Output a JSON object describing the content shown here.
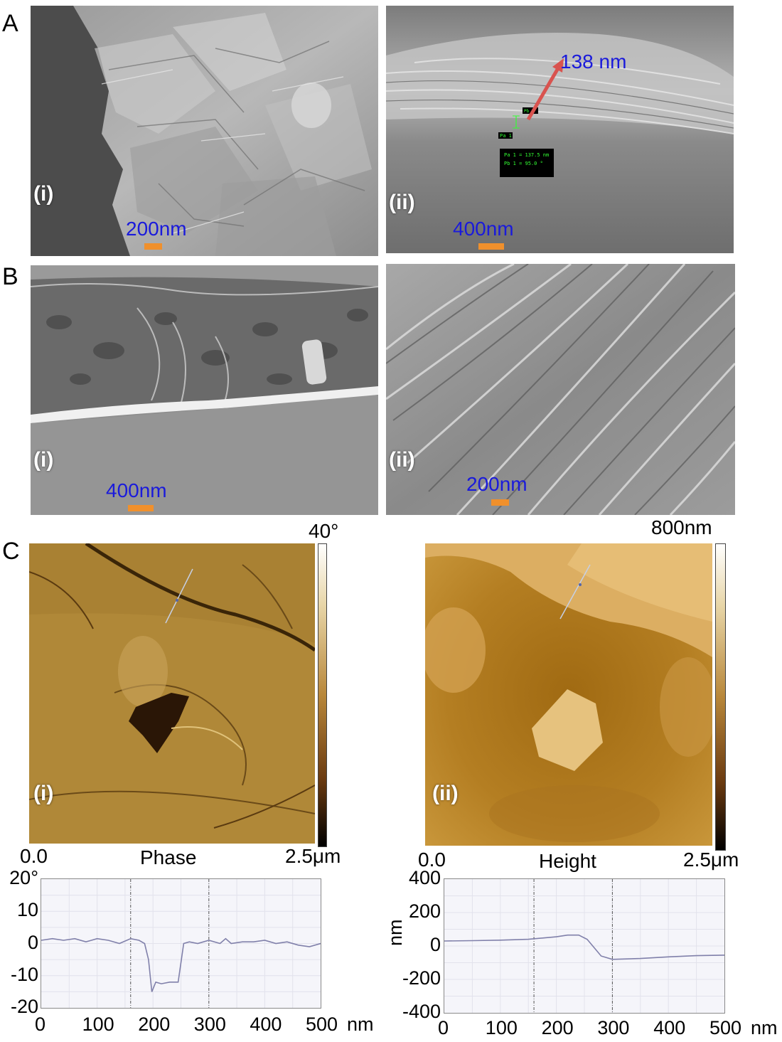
{
  "panels": {
    "A": {
      "letter": "A",
      "i": {
        "label": "(i)",
        "scale": "200nm"
      },
      "ii": {
        "label": "(ii)",
        "scale": "400nm",
        "measurement": "138 nm",
        "meas_box": {
          "line1": "Pa 1 = 137.5 nm",
          "line2": "Pb 1 = 95.0 °"
        },
        "marker_a": "Pa 1",
        "marker_b": "Pb 1"
      }
    },
    "B": {
      "letter": "B",
      "i": {
        "label": "(i)",
        "scale": "400nm"
      },
      "ii": {
        "label": "(ii)",
        "scale": "200nm"
      }
    },
    "C": {
      "letter": "C",
      "i": {
        "label": "(i)",
        "colorbar_max": "40°",
        "axis_start": "0.0",
        "axis_end": "2.5μm",
        "caption": "Phase"
      },
      "ii": {
        "label": "(ii)",
        "colorbar_max": "800nm",
        "axis_start": "0.0",
        "axis_end": "2.5μm",
        "caption": "Height"
      }
    }
  },
  "colors": {
    "scale_text": "#1a1adb",
    "scale_bar": "#f0902c",
    "arrow": "#d9534f",
    "profile_line": "#8080aa"
  },
  "chart_data": [
    {
      "type": "line",
      "title": "",
      "xlabel": "nm",
      "ylabel": "",
      "x_ticks": [
        "0",
        "100",
        "200",
        "300",
        "400",
        "500"
      ],
      "y_ticks": [
        "20°",
        "10",
        "0",
        "-10",
        "-20"
      ],
      "xlim": [
        0,
        500
      ],
      "ylim": [
        -20,
        20
      ],
      "markers_x": [
        160,
        300
      ],
      "grid": true,
      "series": [
        {
          "x": [
            0,
            20,
            40,
            60,
            80,
            100,
            120,
            140,
            160,
            175,
            185,
            192,
            198,
            205,
            215,
            230,
            245,
            255,
            265,
            280,
            300,
            320,
            330,
            340,
            360,
            380,
            400,
            420,
            440,
            460,
            480,
            500
          ],
          "y": [
            1,
            1.5,
            1,
            1.5,
            0.5,
            1.5,
            1,
            0,
            1.5,
            1,
            0,
            -5,
            -15,
            -12,
            -12.5,
            -12,
            -12,
            0,
            0.5,
            0,
            1,
            0,
            1.5,
            0,
            0.5,
            0.5,
            1,
            0,
            0.5,
            -0.5,
            -1,
            0
          ]
        }
      ]
    },
    {
      "type": "line",
      "title": "",
      "xlabel": "nm",
      "ylabel": "nm",
      "x_ticks": [
        "0",
        "100",
        "200",
        "300",
        "400",
        "500"
      ],
      "y_ticks": [
        "400",
        "200",
        "0",
        "-200",
        "-400"
      ],
      "xlim": [
        0,
        500
      ],
      "ylim": [
        -400,
        400
      ],
      "markers_x": [
        160,
        300
      ],
      "grid": true,
      "series": [
        {
          "x": [
            0,
            50,
            100,
            150,
            200,
            220,
            240,
            255,
            265,
            280,
            300,
            350,
            400,
            450,
            500
          ],
          "y": [
            30,
            32,
            35,
            40,
            55,
            65,
            65,
            40,
            0,
            -60,
            -80,
            -75,
            -65,
            -58,
            -55
          ]
        }
      ]
    }
  ]
}
